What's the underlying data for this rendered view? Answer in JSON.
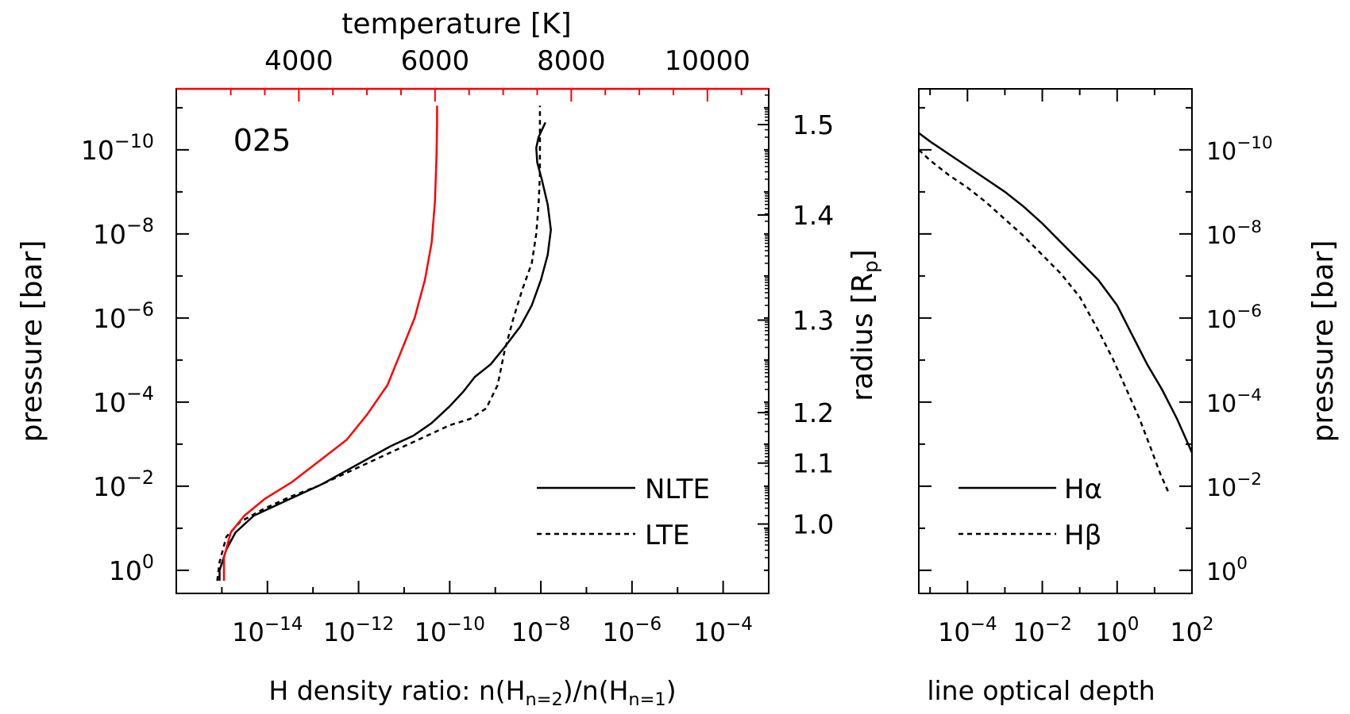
{
  "colors": {
    "ink": "#000000",
    "accent": "#ff0000",
    "background": "#ffffff"
  },
  "chart_data": [
    {
      "type": "line",
      "panel": "left",
      "annotation": "025",
      "xlabel_parts": [
        "H density ratio: n(H",
        "n=2",
        ")/n(H",
        "n=1",
        ")"
      ],
      "xscale": "log",
      "xlim": [
        1e-16,
        0.001
      ],
      "xticks": [
        {
          "base": "10",
          "exp": "−14",
          "value": -14
        },
        {
          "base": "10",
          "exp": "−12",
          "value": -12
        },
        {
          "base": "10",
          "exp": "−10",
          "value": -10
        },
        {
          "base": "10",
          "exp": "−8",
          "value": -8
        },
        {
          "base": "10",
          "exp": "−6",
          "value": -6
        },
        {
          "base": "10",
          "exp": "−4",
          "value": -4
        }
      ],
      "top_axis": {
        "label": "temperature [K]",
        "color": "#ff0000",
        "lim": [
          2200,
          10900
        ],
        "ticks": [
          {
            "text": "4000",
            "value": 4000
          },
          {
            "text": "6000",
            "value": 6000
          },
          {
            "text": "8000",
            "value": 8000
          },
          {
            "text": "10000",
            "value": 10000
          }
        ]
      },
      "ylabel": "pressure [bar]",
      "yscale": "log",
      "ylim_log10": [
        0.55,
        -11.45
      ],
      "yticks": [
        {
          "base": "10",
          "exp": "−10",
          "value": -10
        },
        {
          "base": "10",
          "exp": "−8",
          "value": -8
        },
        {
          "base": "10",
          "exp": "−6",
          "value": -6
        },
        {
          "base": "10",
          "exp": "−4",
          "value": -4
        },
        {
          "base": "10",
          "exp": "−2",
          "value": -2
        },
        {
          "base": "10",
          "exp": "0",
          "value": 0
        }
      ],
      "right_axis": {
        "label_parts": [
          "radius [R",
          "p",
          "]"
        ],
        "ticks": [
          {
            "text": "1.0",
            "log10p": -1.1
          },
          {
            "text": "1.1",
            "log10p": -2.55
          },
          {
            "text": "1.2",
            "log10p": -3.75
          },
          {
            "text": "1.3",
            "log10p": -5.95
          },
          {
            "text": "1.4",
            "log10p": -8.45
          },
          {
            "text": "1.5",
            "log10p": -10.6
          }
        ]
      },
      "legend": {
        "position": "bottom-right",
        "entries": [
          {
            "label": "NLTE",
            "style": "solid"
          },
          {
            "label": "LTE",
            "style": "dashed"
          }
        ]
      },
      "series": [
        {
          "name": "NLTE",
          "style": "solid",
          "color": "#000000",
          "log10x": [
            -15.05,
            -15.05,
            -14.9,
            -14.7,
            -14.3,
            -13.8,
            -13.3,
            -12.8,
            -12.3,
            -11.8,
            -11.3,
            -10.8,
            -10.4,
            -10.0,
            -9.7,
            -9.45,
            -9.1,
            -8.8,
            -8.45,
            -8.2,
            -8.0,
            -7.85,
            -7.78,
            -7.85,
            -7.98,
            -8.08,
            -8.1,
            -8.05,
            -7.9
          ],
          "log10p": [
            0.25,
            0.0,
            -0.5,
            -0.9,
            -1.3,
            -1.55,
            -1.8,
            -2.05,
            -2.35,
            -2.65,
            -2.95,
            -3.2,
            -3.5,
            -3.9,
            -4.25,
            -4.6,
            -4.9,
            -5.3,
            -5.8,
            -6.3,
            -6.9,
            -7.5,
            -8.1,
            -8.7,
            -9.3,
            -9.7,
            -10.05,
            -10.3,
            -10.65
          ]
        },
        {
          "name": "LTE",
          "style": "dashed",
          "color": "#000000",
          "log10x": [
            -15.1,
            -15.05,
            -14.9,
            -14.6,
            -14.1,
            -13.5,
            -12.9,
            -12.3,
            -11.7,
            -11.1,
            -10.5,
            -10.0,
            -9.55,
            -9.2,
            -8.95,
            -8.8,
            -8.6,
            -8.4,
            -8.2,
            -8.1,
            -8.05,
            -8.02,
            -8.02,
            -8.02,
            -8.02
          ],
          "log10p": [
            0.25,
            -0.2,
            -0.8,
            -1.15,
            -1.45,
            -1.75,
            -2.0,
            -2.3,
            -2.6,
            -2.9,
            -3.2,
            -3.45,
            -3.6,
            -3.85,
            -4.4,
            -5.2,
            -6.0,
            -6.7,
            -7.3,
            -8.0,
            -8.7,
            -9.4,
            -10.1,
            -10.7,
            -11.05
          ]
        },
        {
          "name": "temperature",
          "axis": "top",
          "style": "solid",
          "color": "#ff0000",
          "temperature": [
            2900,
            2900,
            3000,
            3200,
            3500,
            3900,
            4300,
            4700,
            5000,
            5300,
            5500,
            5700,
            5850,
            5950,
            6000,
            6020,
            6030,
            6030
          ],
          "log10p": [
            0.25,
            -0.3,
            -0.9,
            -1.3,
            -1.7,
            -2.1,
            -2.6,
            -3.1,
            -3.7,
            -4.4,
            -5.2,
            -6.0,
            -6.9,
            -7.8,
            -8.8,
            -9.8,
            -10.6,
            -11.05
          ]
        }
      ]
    },
    {
      "type": "line",
      "panel": "right",
      "xlabel": "line optical depth",
      "xscale": "log",
      "xlim": [
        5e-06,
        100
      ],
      "xticks": [
        {
          "base": "10",
          "exp": "−4",
          "value": -4
        },
        {
          "base": "10",
          "exp": "−2",
          "value": -2
        },
        {
          "base": "10",
          "exp": "0",
          "value": 0
        },
        {
          "base": "10",
          "exp": "2",
          "value": 2
        }
      ],
      "ylabel": "pressure [bar]",
      "yscale": "log",
      "ylim_log10": [
        0.55,
        -11.45
      ],
      "yticks": [
        {
          "base": "10",
          "exp": "−10",
          "value": -10
        },
        {
          "base": "10",
          "exp": "−8",
          "value": -8
        },
        {
          "base": "10",
          "exp": "−6",
          "value": -6
        },
        {
          "base": "10",
          "exp": "−4",
          "value": -4
        },
        {
          "base": "10",
          "exp": "−2",
          "value": -2
        },
        {
          "base": "10",
          "exp": "0",
          "value": 0
        }
      ],
      "legend": {
        "position": "bottom-right",
        "entries": [
          {
            "label": "Hα",
            "style": "solid"
          },
          {
            "label": "Hβ",
            "style": "dashed"
          }
        ]
      },
      "series": [
        {
          "name": "Hα",
          "style": "solid",
          "color": "#000000",
          "log10x": [
            -5.3,
            -5.0,
            -4.5,
            -4.0,
            -3.5,
            -3.0,
            -2.5,
            -2.0,
            -1.5,
            -1.0,
            -0.5,
            0.0,
            0.4,
            0.8,
            1.2,
            1.6,
            2.0
          ],
          "log10p": [
            -10.4,
            -10.2,
            -9.9,
            -9.6,
            -9.3,
            -9.0,
            -8.65,
            -8.25,
            -7.8,
            -7.35,
            -6.9,
            -6.3,
            -5.6,
            -4.9,
            -4.3,
            -3.6,
            -2.8
          ]
        },
        {
          "name": "Hβ",
          "style": "dashed",
          "color": "#000000",
          "log10x": [
            -5.3,
            -5.0,
            -4.5,
            -4.0,
            -3.5,
            -3.0,
            -2.5,
            -2.0,
            -1.5,
            -1.0,
            -0.5,
            -0.1,
            0.3,
            0.6,
            0.9,
            1.15,
            1.4
          ],
          "log10p": [
            -10.0,
            -9.75,
            -9.4,
            -9.1,
            -8.75,
            -8.35,
            -7.95,
            -7.5,
            -7.05,
            -6.5,
            -5.7,
            -5.0,
            -4.2,
            -3.6,
            -2.9,
            -2.3,
            -1.8
          ]
        }
      ]
    }
  ]
}
